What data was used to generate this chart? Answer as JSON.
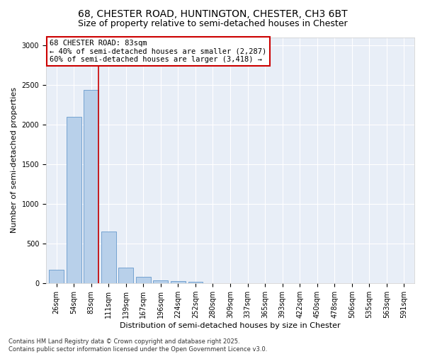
{
  "title_line1": "68, CHESTER ROAD, HUNTINGTON, CHESTER, CH3 6BT",
  "title_line2": "Size of property relative to semi-detached houses in Chester",
  "xlabel": "Distribution of semi-detached houses by size in Chester",
  "ylabel": "Number of semi-detached properties",
  "categories": [
    "26sqm",
    "54sqm",
    "83sqm",
    "111sqm",
    "139sqm",
    "167sqm",
    "196sqm",
    "224sqm",
    "252sqm",
    "280sqm",
    "309sqm",
    "337sqm",
    "365sqm",
    "393sqm",
    "422sqm",
    "450sqm",
    "478sqm",
    "506sqm",
    "535sqm",
    "563sqm",
    "591sqm"
  ],
  "values": [
    175,
    2095,
    2440,
    650,
    200,
    85,
    40,
    30,
    20,
    0,
    0,
    0,
    0,
    0,
    0,
    0,
    0,
    0,
    0,
    0,
    0
  ],
  "bar_color": "#b8d0ea",
  "bar_edge_color": "#6699cc",
  "highlight_bar_index": 2,
  "highlight_line_color": "#cc0000",
  "annotation_text": "68 CHESTER ROAD: 83sqm\n← 40% of semi-detached houses are smaller (2,287)\n60% of semi-detached houses are larger (3,418) →",
  "annotation_box_color": "#ffffff",
  "annotation_box_edge_color": "#cc0000",
  "ylim": [
    0,
    3100
  ],
  "yticks": [
    0,
    500,
    1000,
    1500,
    2000,
    2500,
    3000
  ],
  "background_color": "#e8eef7",
  "footer_text": "Contains HM Land Registry data © Crown copyright and database right 2025.\nContains public sector information licensed under the Open Government Licence v3.0.",
  "title_fontsize": 10,
  "subtitle_fontsize": 9,
  "axis_label_fontsize": 8,
  "tick_fontsize": 7,
  "annotation_fontsize": 7.5,
  "footer_fontsize": 6
}
